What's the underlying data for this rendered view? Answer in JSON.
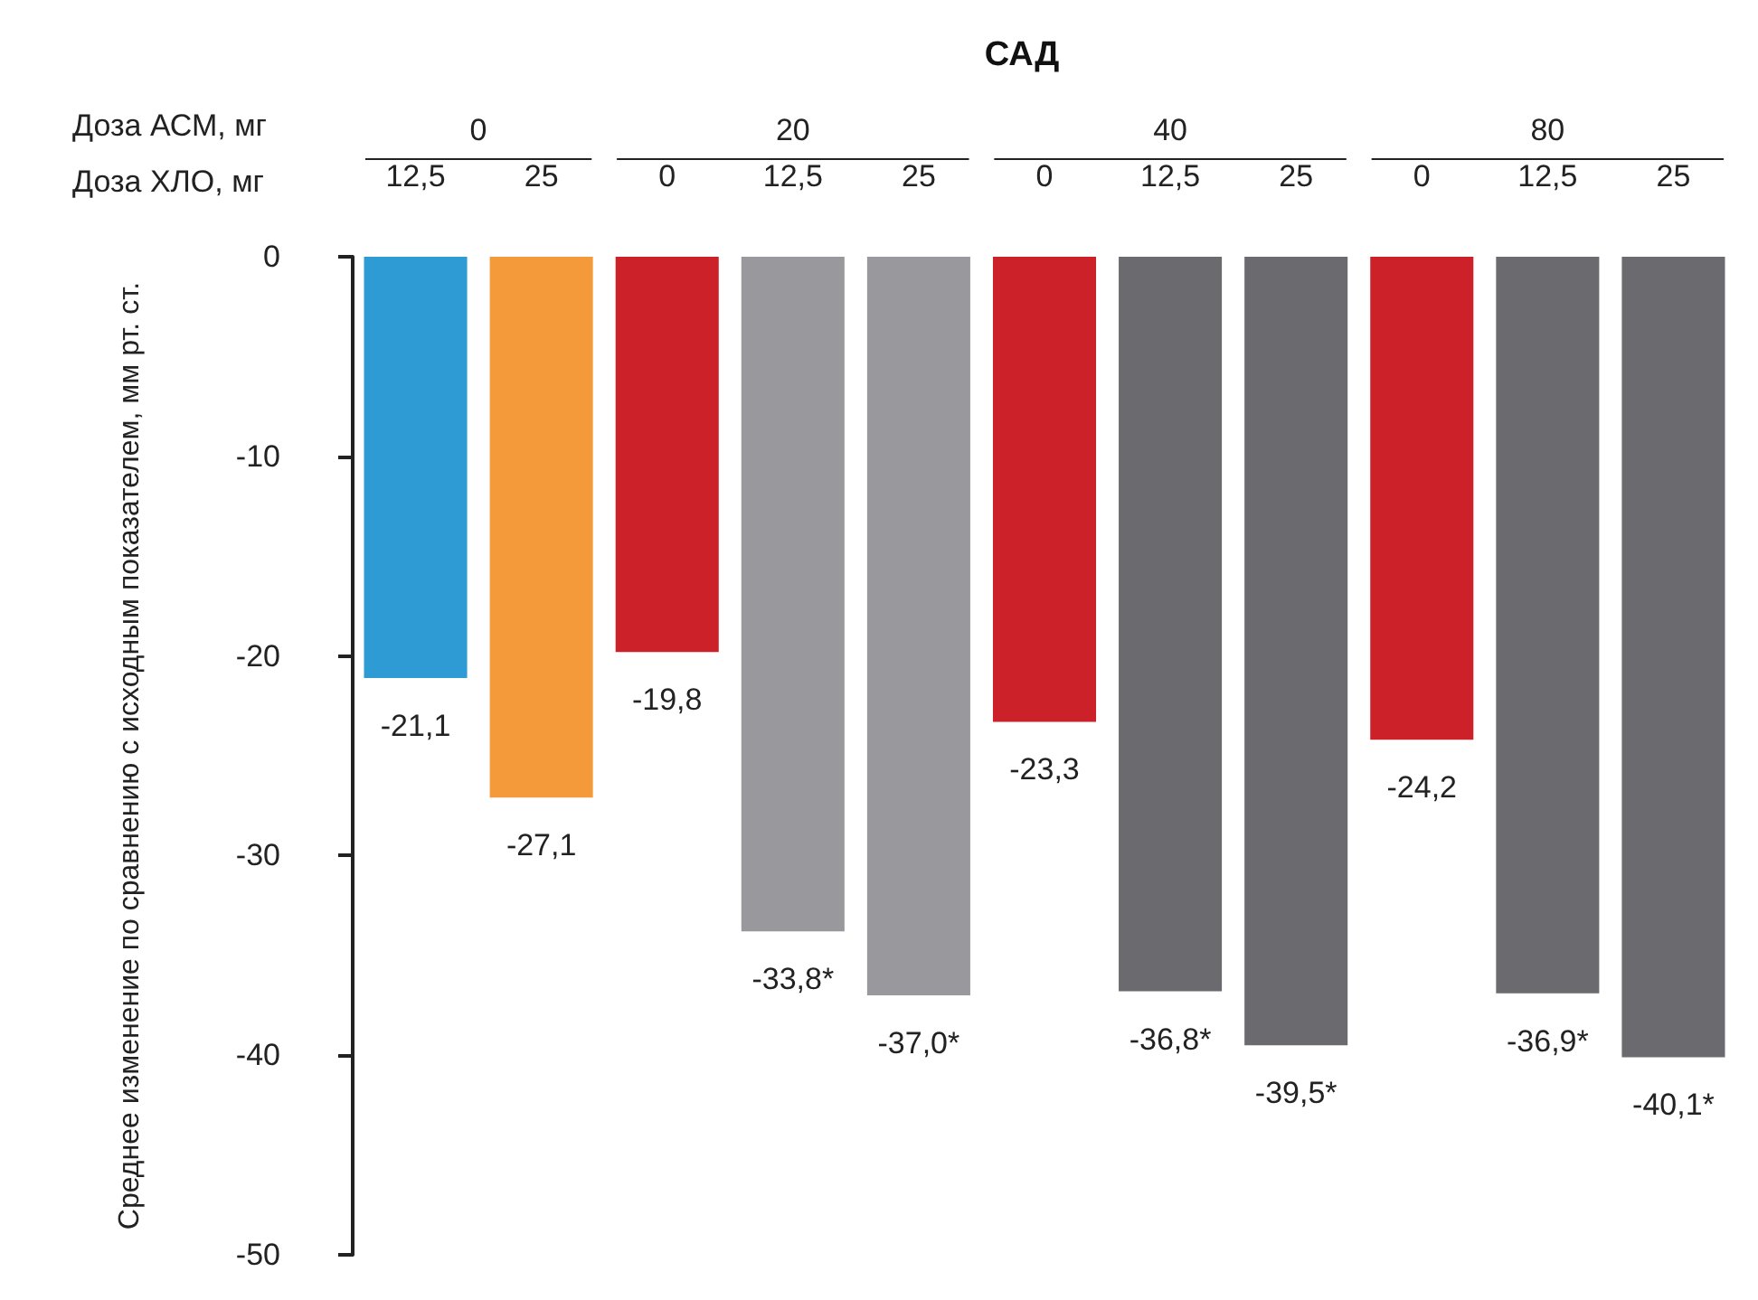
{
  "chart_data": {
    "type": "bar",
    "title": "САД",
    "ylabel": "Среднее изменение по сравнению с исходным показателем, мм рт. ст.",
    "annotations": [
      "Доза АСМ, мг",
      "Доза ХЛО, мг",
      "0",
      "20",
      "40",
      "80"
    ],
    "categories": [
      "12,5",
      "25",
      "0",
      "12,5",
      "25",
      "0",
      "12,5",
      "25",
      "0",
      "12,5",
      "25"
    ],
    "values": [
      -21.1,
      -27.1,
      -19.8,
      -33.8,
      -37.0,
      -23.3,
      -36.8,
      -39.5,
      -24.2,
      -36.9,
      -40.1
    ],
    "colors": [
      "#2e9bd5",
      "#f59a3a",
      "#cc2128",
      "#98989d",
      "#98989d",
      "#cc2128",
      "#6a6a6f",
      "#6a6a6f",
      "#cc2128",
      "#6a6a6f",
      "#6a6a6f"
    ],
    "value_labels": [
      "-21,1",
      "-27,1",
      "-19,8",
      "-33,8*",
      "-37,0*",
      "-23,3",
      "-36,8*",
      "-39,5*",
      "-24,2",
      "-36,9*",
      "-40,1*"
    ],
    "ylim": [
      -50,
      0
    ],
    "yticks": [
      0,
      -10,
      -20,
      -30,
      -40,
      -50
    ],
    "grid": false
  }
}
